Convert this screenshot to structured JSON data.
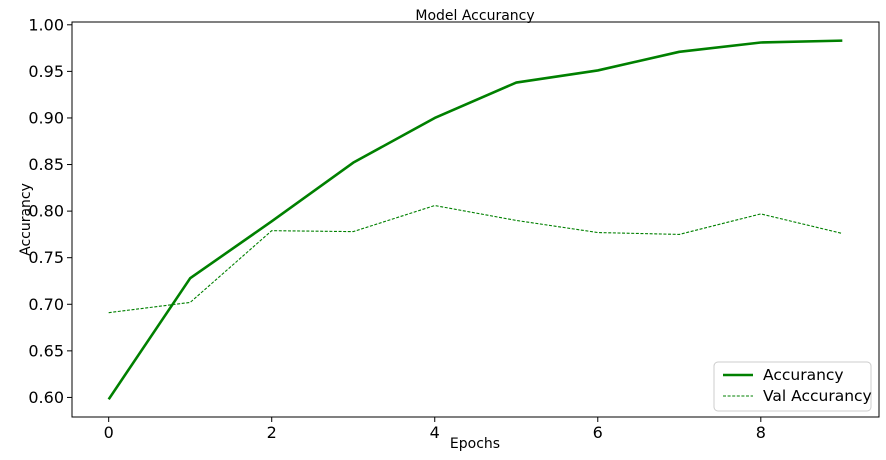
{
  "chart_data": {
    "type": "line",
    "title": "Model Accurancy",
    "xlabel": "Epochs",
    "ylabel": "Accurancy",
    "x": [
      0,
      1,
      2,
      3,
      4,
      5,
      6,
      7,
      8,
      9
    ],
    "xlim": [
      -0.45,
      9.45
    ],
    "ylim": [
      0.579,
      1.003
    ],
    "xticks": [
      0,
      2,
      4,
      6,
      8
    ],
    "xtick_labels": [
      "0",
      "2",
      "4",
      "6",
      "8"
    ],
    "yticks": [
      0.6,
      0.65,
      0.7,
      0.75,
      0.8,
      0.85,
      0.9,
      0.95,
      1.0
    ],
    "ytick_labels": [
      "0.60",
      "0.65",
      "0.70",
      "0.75",
      "0.80",
      "0.85",
      "0.90",
      "0.95",
      "1.00"
    ],
    "grid": false,
    "legend_position": "bottom-right",
    "series": [
      {
        "name": "Accurancy",
        "style": "solid",
        "color": "#008000",
        "values": [
          0.598,
          0.728,
          0.789,
          0.852,
          0.9,
          0.938,
          0.951,
          0.971,
          0.981,
          0.983
        ]
      },
      {
        "name": "Val Accurancy",
        "style": "dashed",
        "color": "#008000",
        "values": [
          0.691,
          0.702,
          0.779,
          0.778,
          0.806,
          0.79,
          0.777,
          0.775,
          0.797,
          0.776
        ]
      }
    ]
  }
}
